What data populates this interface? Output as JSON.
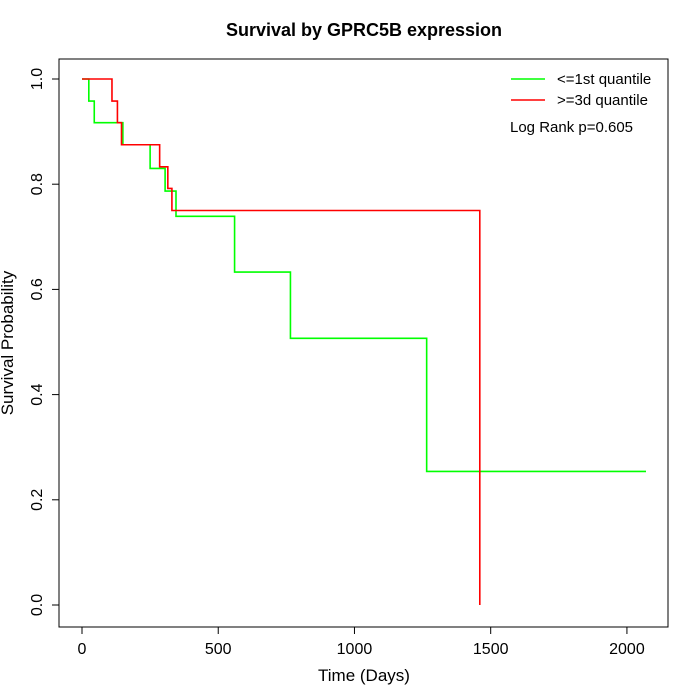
{
  "chart_data": {
    "type": "line",
    "title": "Survival by GPRC5B expression",
    "xlabel": "Time (Days)",
    "ylabel": "Survival Probability",
    "xlim": [
      0,
      2070
    ],
    "ylim": [
      0,
      1
    ],
    "x_ticks": [
      0,
      500,
      1000,
      1500,
      2000
    ],
    "x_tick_labels": [
      "0",
      "500",
      "1000",
      "1500",
      "2000"
    ],
    "y_ticks": [
      0.0,
      0.2,
      0.4,
      0.6,
      0.8,
      1.0
    ],
    "y_tick_labels": [
      "0.0",
      "0.2",
      "0.4",
      "0.6",
      "0.8",
      "1.0"
    ],
    "grid": false,
    "legend_position": "top-right",
    "series": [
      {
        "name": "<=1st quantile",
        "color": "#00FF00",
        "step": true,
        "x": [
          0,
          25,
          45,
          150,
          250,
          305,
          345,
          560,
          765,
          1265,
          2070
        ],
        "y": [
          1.0,
          0.958,
          0.917,
          0.875,
          0.83,
          0.787,
          0.739,
          0.633,
          0.507,
          0.254,
          0.254
        ]
      },
      {
        "name": ">=3d quantile",
        "color": "#FF0000",
        "step": true,
        "x": [
          0,
          110,
          130,
          145,
          285,
          315,
          330,
          1460,
          1460
        ],
        "y": [
          1.0,
          0.958,
          0.917,
          0.875,
          0.833,
          0.792,
          0.75,
          0.75,
          0.0
        ]
      }
    ],
    "annotations": [
      {
        "text": "Log Rank p=0.605",
        "position": "top-right"
      }
    ]
  }
}
